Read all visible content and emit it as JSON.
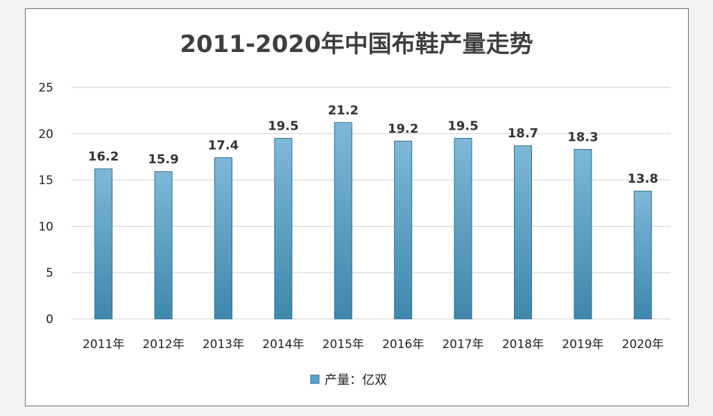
{
  "chart_data": {
    "type": "bar",
    "title": "2011-2020年中国布鞋产量走势",
    "categories": [
      "2011年",
      "2012年",
      "2013年",
      "2014年",
      "2015年",
      "2016年",
      "2017年",
      "2018年",
      "2019年",
      "2020年"
    ],
    "series": [
      {
        "name": "产量：亿双",
        "values": [
          16.2,
          15.9,
          17.4,
          19.5,
          21.2,
          19.2,
          19.5,
          18.7,
          18.3,
          13.8
        ]
      }
    ],
    "data_labels": [
      "16.2",
      "15.9",
      "17.4",
      "19.5",
      "21.2",
      "19.2",
      "19.5",
      "18.7",
      "18.3",
      "13.8"
    ],
    "y_ticks": [
      "0",
      "5",
      "10",
      "15",
      "20",
      "25"
    ],
    "ylim": [
      0,
      25
    ],
    "grid": true,
    "legend_position": "bottom",
    "colors": {
      "bar_top": "#7db8d8",
      "bar_bottom": "#3f87ad",
      "bar_stroke": "#2f6d8e",
      "grid": "#d0d0d0",
      "legend_swatch": "#5ba3c9"
    }
  }
}
